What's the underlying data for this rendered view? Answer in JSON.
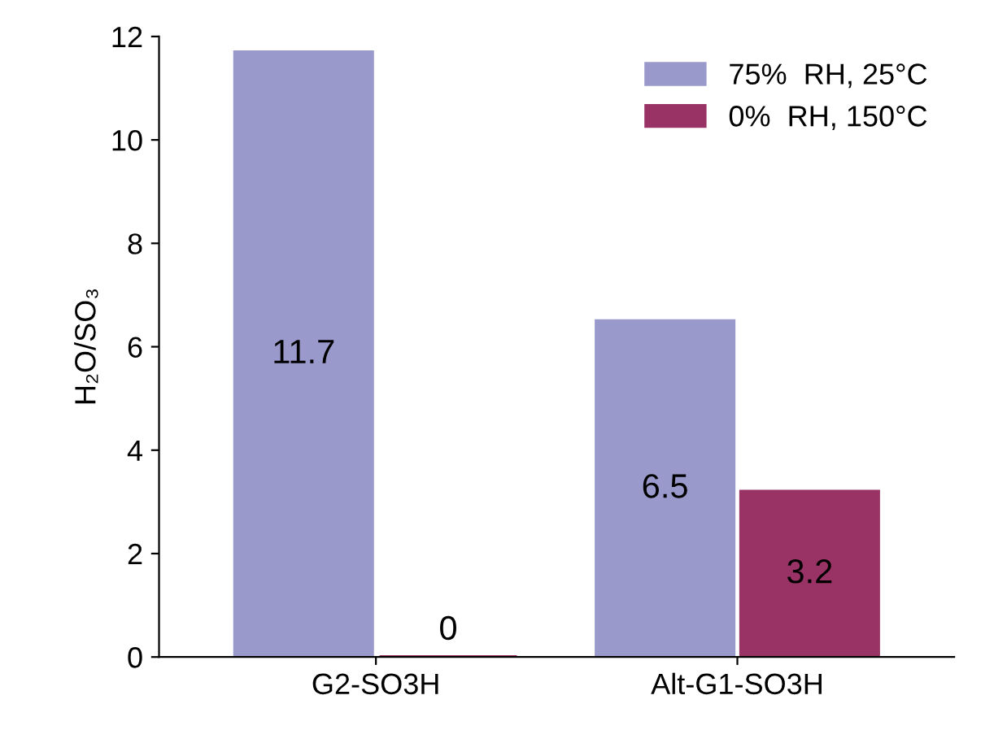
{
  "chart_data": {
    "type": "bar",
    "ylabel": "H₂O/SO₃",
    "categories": [
      "G2-SO3H",
      "Alt-G1-SO3H"
    ],
    "series": [
      {
        "name": "75%  RH, 25°C",
        "color": "#9999cc",
        "values": [
          11.7,
          6.5
        ]
      },
      {
        "name": "0%  RH, 150°C",
        "color": "#993366",
        "values": [
          0,
          3.2
        ]
      }
    ],
    "ylim": [
      0,
      12
    ],
    "yticks": [
      0,
      2,
      4,
      6,
      8,
      10,
      12
    ],
    "data_labels": true,
    "legend": "top right"
  }
}
